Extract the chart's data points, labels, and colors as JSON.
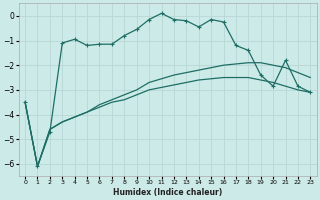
{
  "xlabel": "Humidex (Indice chaleur)",
  "bg_color": "#cceae7",
  "grid_color": "#b8d8d5",
  "line_color": "#1e6e65",
  "xlim": [
    -0.5,
    23.5
  ],
  "ylim": [
    -6.5,
    0.5
  ],
  "yticks": [
    0,
    -1,
    -2,
    -3,
    -4,
    -5,
    -6
  ],
  "xticks": [
    0,
    1,
    2,
    3,
    4,
    5,
    6,
    7,
    8,
    9,
    10,
    11,
    12,
    13,
    14,
    15,
    16,
    17,
    18,
    19,
    20,
    21,
    22,
    23
  ],
  "series1_x": [
    0,
    1,
    2,
    3,
    4,
    5,
    6,
    7,
    8,
    9,
    10,
    11,
    12,
    13,
    14,
    15,
    16,
    17,
    18,
    19,
    20,
    21,
    22,
    23
  ],
  "series1_y": [
    -3.5,
    -6.1,
    -4.6,
    -4.3,
    -4.1,
    -3.9,
    -3.7,
    -3.5,
    -3.4,
    -3.2,
    -3.0,
    -2.9,
    -2.8,
    -2.7,
    -2.6,
    -2.55,
    -2.5,
    -2.5,
    -2.5,
    -2.6,
    -2.7,
    -2.85,
    -3.0,
    -3.1
  ],
  "series2_x": [
    0,
    1,
    2,
    3,
    4,
    5,
    6,
    7,
    8,
    9,
    10,
    11,
    12,
    13,
    14,
    15,
    16,
    17,
    18,
    19,
    20,
    21,
    22,
    23
  ],
  "series2_y": [
    -3.5,
    -6.1,
    -4.6,
    -4.3,
    -4.1,
    -3.9,
    -3.6,
    -3.4,
    -3.2,
    -3.0,
    -2.7,
    -2.55,
    -2.4,
    -2.3,
    -2.2,
    -2.1,
    -2.0,
    -1.95,
    -1.9,
    -1.9,
    -2.0,
    -2.1,
    -2.3,
    -2.5
  ],
  "series3_x": [
    0,
    1,
    2,
    3,
    4,
    5,
    6,
    7,
    8,
    9,
    10,
    11,
    12,
    13,
    14,
    15,
    16,
    17,
    18,
    19,
    20,
    21,
    22,
    23
  ],
  "series3_y": [
    -3.5,
    -6.1,
    -4.7,
    -1.1,
    -0.95,
    -1.2,
    -1.15,
    -1.15,
    -0.8,
    -0.55,
    -0.15,
    0.1,
    -0.15,
    -0.2,
    -0.45,
    -0.15,
    -0.25,
    -1.2,
    -1.4,
    -2.4,
    -2.85,
    -1.8,
    -2.85,
    -3.1
  ],
  "marker": "+",
  "markersize": 3.5,
  "linewidth": 0.9
}
